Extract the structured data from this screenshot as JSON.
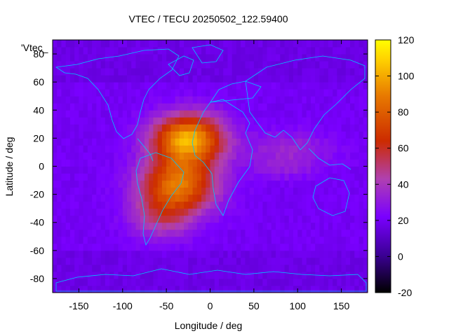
{
  "chart_data": {
    "type": "heatmap",
    "title": "VTEC / TECU 20250502_122.59400",
    "xlabel": "Longitude / deg",
    "ylabel": "Latitude / deg",
    "key_label": "'Vtec_",
    "xlim": [
      -180,
      180
    ],
    "ylim": [
      -90,
      90
    ],
    "xticks": [
      -150,
      -100,
      -50,
      0,
      50,
      100,
      150
    ],
    "yticks": [
      -80,
      -60,
      -40,
      -20,
      0,
      20,
      40,
      60,
      80
    ],
    "colorbar": {
      "range": [
        -20,
        120
      ],
      "ticks": [
        -20,
        0,
        20,
        40,
        60,
        80,
        100,
        120
      ]
    },
    "background_value": 20,
    "features": [
      {
        "name": "equatorial anomaly north",
        "lon": -25,
        "lat": 20,
        "peak": 100,
        "sigma_lon": 28,
        "sigma_lat": 12
      },
      {
        "name": "equatorial anomaly south",
        "lon": -35,
        "lat": -12,
        "peak": 85,
        "sigma_lon": 30,
        "sigma_lat": 14
      },
      {
        "name": "south atlantic extension",
        "lon": -55,
        "lat": -35,
        "peak": 45,
        "sigma_lon": 25,
        "sigma_lat": 12
      },
      {
        "name": "indian ocean band",
        "lon": 90,
        "lat": 12,
        "peak": 35,
        "sigma_lon": 35,
        "sigma_lat": 9
      },
      {
        "name": "indian ocean south band",
        "lon": 85,
        "lat": -2,
        "peak": 28,
        "sigma_lon": 25,
        "sigma_lat": 5
      }
    ]
  }
}
